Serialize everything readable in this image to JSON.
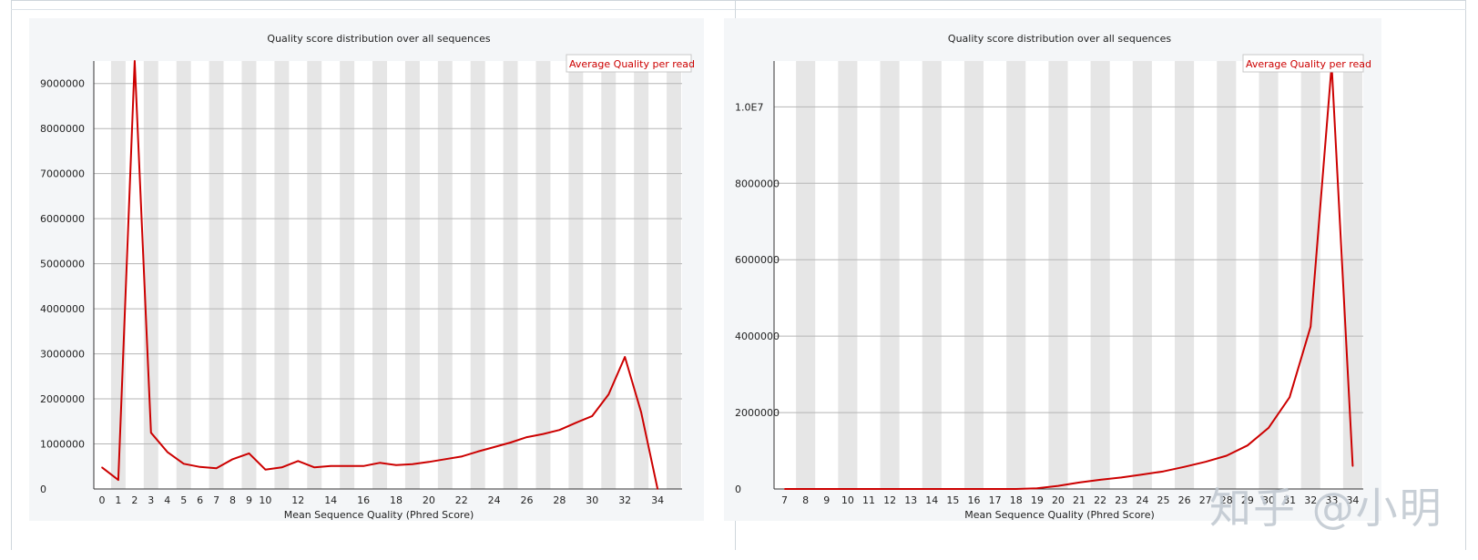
{
  "watermark": "知乎 @小明",
  "chart_data": [
    {
      "type": "line",
      "title": "Quality score distribution over all sequences",
      "xlabel": "Mean Sequence Quality (Phred Score)",
      "ylabel": "",
      "legend": {
        "placement": "top-right",
        "entries": [
          "Average Quality per read"
        ]
      },
      "grid": true,
      "xlim": [
        0,
        35
      ],
      "ylim": [
        0,
        9500000
      ],
      "x_tick_labels": [
        "0",
        "1",
        "2",
        "3",
        "4",
        "5",
        "6",
        "7",
        "8",
        "9",
        "10",
        "12",
        "14",
        "16",
        "18",
        "20",
        "22",
        "24",
        "26",
        "28",
        "30",
        "32",
        "34"
      ],
      "y_tick_labels": [
        "0",
        "1000000",
        "2000000",
        "3000000",
        "4000000",
        "5000000",
        "6000000",
        "7000000",
        "8000000",
        "9000000"
      ],
      "series": [
        {
          "name": "Average Quality per read",
          "color": "#cc0000",
          "x": [
            0,
            1,
            2,
            3,
            4,
            5,
            6,
            7,
            8,
            9,
            10,
            11,
            12,
            13,
            14,
            15,
            16,
            17,
            18,
            19,
            20,
            21,
            22,
            23,
            24,
            25,
            26,
            27,
            28,
            29,
            30,
            31,
            32,
            33,
            34
          ],
          "y": [
            480000,
            200000,
            9500000,
            1250000,
            820000,
            560000,
            490000,
            460000,
            660000,
            790000,
            430000,
            480000,
            620000,
            480000,
            510000,
            510000,
            510000,
            580000,
            530000,
            550000,
            600000,
            660000,
            720000,
            830000,
            930000,
            1030000,
            1150000,
            1220000,
            1310000,
            1470000,
            1620000,
            2100000,
            2930000,
            1700000,
            0
          ]
        }
      ]
    },
    {
      "type": "line",
      "title": "Quality score distribution over all sequences",
      "xlabel": "Mean Sequence Quality (Phred Score)",
      "ylabel": "",
      "legend": {
        "placement": "top-right",
        "entries": [
          "Average Quality per read"
        ]
      },
      "grid": true,
      "xlim": [
        7,
        34
      ],
      "ylim": [
        0,
        11200000
      ],
      "x_tick_labels": [
        "7",
        "8",
        "9",
        "10",
        "11",
        "12",
        "13",
        "14",
        "15",
        "16",
        "17",
        "18",
        "19",
        "20",
        "21",
        "22",
        "23",
        "24",
        "25",
        "26",
        "27",
        "28",
        "29",
        "30",
        "31",
        "32",
        "33",
        "34"
      ],
      "y_tick_labels": [
        "0",
        "2000000",
        "4000000",
        "6000000",
        "8000000",
        "1.0E7"
      ],
      "series": [
        {
          "name": "Average Quality per read",
          "color": "#cc0000",
          "x": [
            7,
            8,
            9,
            10,
            11,
            12,
            13,
            14,
            15,
            16,
            17,
            18,
            19,
            20,
            21,
            22,
            23,
            24,
            25,
            26,
            27,
            28,
            29,
            30,
            31,
            32,
            33,
            34
          ],
          "y": [
            0,
            0,
            0,
            0,
            0,
            0,
            0,
            0,
            0,
            0,
            0,
            0,
            20000,
            80000,
            170000,
            240000,
            300000,
            380000,
            460000,
            580000,
            710000,
            870000,
            1140000,
            1600000,
            2400000,
            4250000,
            11100000,
            600000
          ]
        }
      ]
    }
  ]
}
